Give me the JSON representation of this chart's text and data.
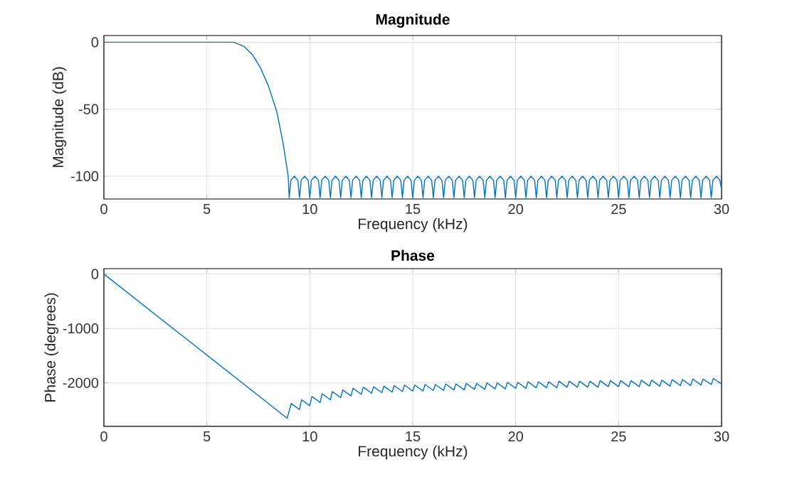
{
  "chart_data": [
    {
      "type": "line",
      "title": "Magnitude",
      "xlabel": "Frequency (kHz)",
      "ylabel": "Magnitude (dB)",
      "color": "#0072bd",
      "grid": true,
      "xlim": [
        0,
        30
      ],
      "ylim": [
        -117,
        5
      ],
      "xticks": [
        0,
        5,
        10,
        15,
        20,
        25,
        30
      ],
      "yticks": [
        -100,
        -50,
        0
      ],
      "x": [
        0,
        6.3,
        6.8,
        7.2,
        7.6,
        8,
        8.4,
        8.7,
        8.95,
        9,
        9.08,
        9.25,
        9.42,
        9.5,
        9.58,
        9.75,
        9.92,
        10,
        10.08,
        10.25,
        10.42,
        10.5,
        10.58,
        10.75,
        10.92,
        11,
        11.08,
        11.25,
        11.42,
        11.5,
        11.58,
        11.75,
        11.92,
        12,
        12.08,
        12.25,
        12.42,
        12.5,
        12.58,
        12.75,
        12.92,
        13,
        13.08,
        13.25,
        13.42,
        13.5,
        13.58,
        13.75,
        13.92,
        14,
        14.08,
        14.25,
        14.42,
        14.5,
        14.58,
        14.75,
        14.92,
        15,
        15.08,
        15.25,
        15.42,
        15.5,
        15.58,
        15.75,
        15.92,
        16,
        16.08,
        16.25,
        16.42,
        16.5,
        16.58,
        16.75,
        16.92,
        17,
        17.08,
        17.25,
        17.42,
        17.5,
        17.58,
        17.75,
        17.92,
        18,
        18.08,
        18.25,
        18.42,
        18.5,
        18.58,
        18.75,
        18.92,
        19,
        19.08,
        19.25,
        19.42,
        19.5,
        19.58,
        19.75,
        19.92,
        20,
        20.08,
        20.25,
        20.42,
        20.5,
        20.58,
        20.75,
        20.92,
        21,
        21.08,
        21.25,
        21.42,
        21.5,
        21.58,
        21.75,
        21.92,
        22,
        22.08,
        22.25,
        22.42,
        22.5,
        22.58,
        22.75,
        22.92,
        23,
        23.08,
        23.25,
        23.42,
        23.5,
        23.58,
        23.75,
        23.92,
        24,
        24.08,
        24.25,
        24.42,
        24.5,
        24.58,
        24.75,
        24.92,
        25,
        25.08,
        25.25,
        25.42,
        25.5,
        25.58,
        25.75,
        25.92,
        26,
        26.08,
        26.25,
        26.42,
        26.5,
        26.58,
        26.75,
        26.92,
        27,
        27.08,
        27.25,
        27.42,
        27.5,
        27.58,
        27.75,
        27.92,
        28,
        28.08,
        28.25,
        28.42,
        28.5,
        28.58,
        28.75,
        28.92,
        29,
        29.08,
        29.25,
        29.42,
        29.5,
        29.58,
        29.75,
        29.92,
        30
      ],
      "values": [
        0,
        0,
        -3,
        -9,
        -19,
        -33,
        -52,
        -75,
        -100,
        -116,
        -103,
        -100,
        -103,
        -116,
        -103,
        -100,
        -103,
        -116,
        -103,
        -100,
        -103,
        -116,
        -103,
        -100,
        -103,
        -116,
        -103,
        -100,
        -103,
        -116,
        -103,
        -100,
        -103,
        -116,
        -103,
        -100,
        -103,
        -116,
        -103,
        -100,
        -103,
        -116,
        -103,
        -100,
        -103,
        -116,
        -103,
        -100,
        -103,
        -116,
        -103,
        -100,
        -103,
        -116,
        -103,
        -100,
        -103,
        -116,
        -103,
        -100,
        -103,
        -116,
        -103,
        -100,
        -103,
        -116,
        -103,
        -100,
        -103,
        -116,
        -103,
        -100,
        -103,
        -116,
        -103,
        -100,
        -103,
        -116,
        -103,
        -100,
        -103,
        -116,
        -103,
        -100,
        -103,
        -116,
        -103,
        -100,
        -103,
        -116,
        -103,
        -100,
        -103,
        -116,
        -103,
        -100,
        -103,
        -116,
        -103,
        -100,
        -103,
        -116,
        -103,
        -100,
        -103,
        -116,
        -103,
        -100,
        -103,
        -116,
        -103,
        -100,
        -103,
        -116,
        -103,
        -100,
        -103,
        -116,
        -103,
        -100,
        -103,
        -116,
        -103,
        -100,
        -103,
        -116,
        -103,
        -100,
        -103,
        -116,
        -103,
        -100,
        -103,
        -116,
        -103,
        -100,
        -103,
        -116,
        -103,
        -100,
        -103,
        -116,
        -103,
        -100,
        -103,
        -116,
        -103,
        -100,
        -103,
        -116,
        -103,
        -100,
        -103,
        -116,
        -103,
        -100,
        -103,
        -116,
        -103,
        -100,
        -103,
        -116,
        -103,
        -100,
        -103,
        -116,
        -103,
        -100,
        -103,
        -116,
        -103,
        -100,
        -103,
        -116,
        -103,
        -100,
        -103,
        -110
      ]
    },
    {
      "type": "line",
      "title": "Phase",
      "xlabel": "Frequency (kHz)",
      "ylabel": "Phase (degrees)",
      "color": "#0072bd",
      "grid": true,
      "xlim": [
        0,
        30
      ],
      "ylim": [
        -2800,
        100
      ],
      "xticks": [
        0,
        5,
        10,
        15,
        20,
        25,
        30
      ],
      "yticks": [
        -2000,
        -1000,
        0
      ],
      "x": [
        0,
        8.9,
        9.1,
        9.5,
        9.6,
        10,
        10.1,
        10.5,
        10.6,
        11,
        11.1,
        11.5,
        11.6,
        12,
        12.1,
        12.5,
        12.6,
        13,
        13.1,
        13.5,
        13.6,
        14,
        14.1,
        14.5,
        14.6,
        15,
        15.1,
        15.5,
        15.6,
        16,
        16.1,
        16.5,
        16.6,
        17,
        17.1,
        17.5,
        17.6,
        18,
        18.1,
        18.5,
        18.6,
        19,
        19.1,
        19.5,
        19.6,
        20,
        20.1,
        20.5,
        20.6,
        21,
        21.1,
        21.5,
        21.6,
        22,
        22.1,
        22.5,
        22.6,
        23,
        23.1,
        23.5,
        23.6,
        24,
        24.1,
        24.5,
        24.6,
        25,
        25.1,
        25.5,
        25.6,
        26,
        26.1,
        26.5,
        26.6,
        27,
        27.1,
        27.5,
        27.6,
        28,
        28.1,
        28.5,
        28.6,
        29,
        29.1,
        29.5,
        29.6,
        30
      ],
      "values": [
        0,
        -2650,
        -2380,
        -2490,
        -2310,
        -2420,
        -2250,
        -2360,
        -2200,
        -2310,
        -2160,
        -2270,
        -2130,
        -2240,
        -2100,
        -2210,
        -2080,
        -2190,
        -2070,
        -2180,
        -2060,
        -2170,
        -2050,
        -2160,
        -2040,
        -2150,
        -2040,
        -2150,
        -2030,
        -2140,
        -2030,
        -2140,
        -2020,
        -2130,
        -2020,
        -2130,
        -2010,
        -2120,
        -2010,
        -2120,
        -2000,
        -2110,
        -2000,
        -2110,
        -1990,
        -2100,
        -1990,
        -2100,
        -1980,
        -2090,
        -1980,
        -2090,
        -1980,
        -2090,
        -1970,
        -2080,
        -1970,
        -2080,
        -1970,
        -2080,
        -1970,
        -2080,
        -1960,
        -2070,
        -1960,
        -2070,
        -1960,
        -2070,
        -1960,
        -2070,
        -1950,
        -2060,
        -1950,
        -2060,
        -1950,
        -2060,
        -1940,
        -2050,
        -1940,
        -2050,
        -1930,
        -2040,
        -1930,
        -2030,
        -1920,
        -2020
      ]
    }
  ]
}
